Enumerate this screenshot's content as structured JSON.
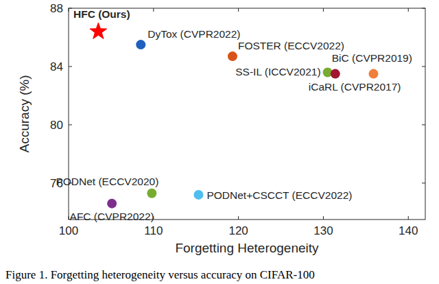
{
  "chart_data": {
    "type": "scatter",
    "x_label": "Forgetting Heterogeneity",
    "y_label": "Accuracy (%)",
    "caption": "Figure 1. Forgetting heterogeneity versus accuracy on CIFAR-100",
    "xlim": [
      100,
      142
    ],
    "xticks": [
      100,
      110,
      120,
      130,
      140
    ],
    "ylim": [
      73.5,
      88
    ],
    "yticks": [
      76,
      80,
      84,
      88
    ],
    "grid": false,
    "series": [
      {
        "name": "HFC (Ours)",
        "color": "#ff0000",
        "marker": "star",
        "x": [
          103.5
        ],
        "values": [
          86.4
        ]
      },
      {
        "name": "DyTox (CVPR2022)",
        "color": "#1f5fbf",
        "marker": "circle",
        "x": [
          108.5
        ],
        "values": [
          85.5
        ]
      },
      {
        "name": "FOSTER (ECCV2022)",
        "color": "#d95319",
        "marker": "circle",
        "x": [
          119.3
        ],
        "values": [
          84.7
        ]
      },
      {
        "name": "SS-IL (ICCV2021)",
        "color": "#77ac30",
        "marker": "circle",
        "x": [
          130.5
        ],
        "values": [
          83.6
        ]
      },
      {
        "name": "BiC (CVPR2019)",
        "color": "#a2142f",
        "marker": "circle",
        "x": [
          131.4
        ],
        "values": [
          83.5
        ]
      },
      {
        "name": "iCaRL (CVPR2017)",
        "color": "#f07f3c",
        "marker": "circle",
        "x": [
          135.9
        ],
        "values": [
          83.5
        ]
      },
      {
        "name": "PODNet (ECCV2020)",
        "color": "#77ac30",
        "marker": "circle",
        "x": [
          109.8
        ],
        "values": [
          75.3
        ]
      },
      {
        "name": "PODNet+CSCCT (ECCV2022)",
        "color": "#4dbeee",
        "marker": "circle",
        "x": [
          115.3
        ],
        "values": [
          75.2
        ]
      },
      {
        "name": "AFC (CVPR2022)",
        "color": "#7e2f8e",
        "marker": "circle",
        "x": [
          105.1
        ],
        "values": [
          74.6
        ]
      }
    ]
  }
}
